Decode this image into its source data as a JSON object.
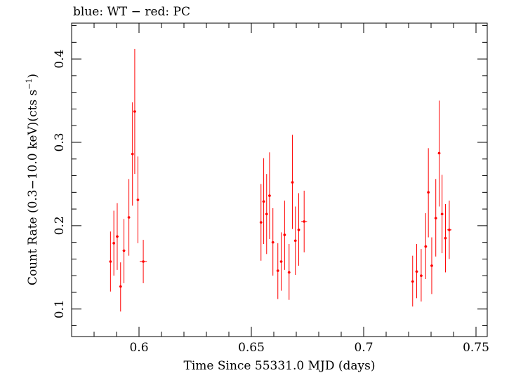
{
  "chart_data": {
    "type": "scatter",
    "title": "blue: WT − red: PC",
    "xlabel": "Time Since 55331.0 MJD (days)",
    "ylabel": "Count Rate (0.3−10.0 keV)(cts s",
    "ylabel_sup": "−1",
    "ylabel_end": ")",
    "xlim": [
      0.57,
      0.755
    ],
    "ylim": [
      0.067,
      0.443
    ],
    "x_ticks": [
      0.6,
      0.65,
      0.7,
      0.75
    ],
    "x_tick_labels": [
      "0.6",
      "0.65",
      "0.7",
      "0.75"
    ],
    "y_ticks": [
      0.1,
      0.2,
      0.3,
      0.4
    ],
    "y_tick_labels": [
      "0.1",
      "0.2",
      "0.3",
      "0.4"
    ],
    "grid": false,
    "series": [
      {
        "color": "#ff0000",
        "points": [
          {
            "x": 0.5873,
            "y": 0.157,
            "lo": 0.121,
            "hi": 0.193,
            "xerr": 0.0006
          },
          {
            "x": 0.5888,
            "y": 0.179,
            "lo": 0.14,
            "hi": 0.218,
            "xerr": 0.0006
          },
          {
            "x": 0.5903,
            "y": 0.187,
            "lo": 0.147,
            "hi": 0.227,
            "xerr": 0.0006
          },
          {
            "x": 0.5918,
            "y": 0.127,
            "lo": 0.097,
            "hi": 0.156,
            "xerr": 0.0006
          },
          {
            "x": 0.5933,
            "y": 0.17,
            "lo": 0.131,
            "hi": 0.208,
            "xerr": 0.0006
          },
          {
            "x": 0.5955,
            "y": 0.21,
            "lo": 0.164,
            "hi": 0.256,
            "xerr": 0.0006
          },
          {
            "x": 0.5971,
            "y": 0.286,
            "lo": 0.224,
            "hi": 0.348,
            "xerr": 0.0006
          },
          {
            "x": 0.5981,
            "y": 0.337,
            "lo": 0.262,
            "hi": 0.412,
            "xerr": 0.0006
          },
          {
            "x": 0.5995,
            "y": 0.231,
            "lo": 0.179,
            "hi": 0.283,
            "xerr": 0.0006
          },
          {
            "x": 0.6019,
            "y": 0.157,
            "lo": 0.131,
            "hi": 0.183,
            "xerr": 0.0016
          },
          {
            "x": 0.6543,
            "y": 0.204,
            "lo": 0.158,
            "hi": 0.25,
            "xerr": 0.0006
          },
          {
            "x": 0.6555,
            "y": 0.229,
            "lo": 0.178,
            "hi": 0.281,
            "xerr": 0.0006
          },
          {
            "x": 0.6568,
            "y": 0.214,
            "lo": 0.166,
            "hi": 0.262,
            "xerr": 0.0006
          },
          {
            "x": 0.6581,
            "y": 0.236,
            "lo": 0.184,
            "hi": 0.288,
            "xerr": 0.0006
          },
          {
            "x": 0.6596,
            "y": 0.18,
            "lo": 0.14,
            "hi": 0.221,
            "xerr": 0.0006
          },
          {
            "x": 0.6618,
            "y": 0.146,
            "lo": 0.112,
            "hi": 0.179,
            "xerr": 0.0006
          },
          {
            "x": 0.6633,
            "y": 0.157,
            "lo": 0.122,
            "hi": 0.192,
            "xerr": 0.0006
          },
          {
            "x": 0.6648,
            "y": 0.189,
            "lo": 0.147,
            "hi": 0.23,
            "xerr": 0.0006
          },
          {
            "x": 0.6668,
            "y": 0.144,
            "lo": 0.111,
            "hi": 0.178,
            "xerr": 0.0006
          },
          {
            "x": 0.6683,
            "y": 0.252,
            "lo": 0.196,
            "hi": 0.309,
            "xerr": 0.0006
          },
          {
            "x": 0.6696,
            "y": 0.182,
            "lo": 0.141,
            "hi": 0.223,
            "xerr": 0.0006
          },
          {
            "x": 0.6711,
            "y": 0.195,
            "lo": 0.152,
            "hi": 0.239,
            "xerr": 0.0006
          },
          {
            "x": 0.6735,
            "y": 0.205,
            "lo": 0.168,
            "hi": 0.242,
            "xerr": 0.0013
          },
          {
            "x": 0.7218,
            "y": 0.133,
            "lo": 0.103,
            "hi": 0.164,
            "xerr": 0.0006
          },
          {
            "x": 0.7236,
            "y": 0.145,
            "lo": 0.113,
            "hi": 0.178,
            "xerr": 0.0006
          },
          {
            "x": 0.7256,
            "y": 0.14,
            "lo": 0.109,
            "hi": 0.172,
            "xerr": 0.0006
          },
          {
            "x": 0.7276,
            "y": 0.175,
            "lo": 0.136,
            "hi": 0.215,
            "xerr": 0.0006
          },
          {
            "x": 0.7288,
            "y": 0.24,
            "lo": 0.186,
            "hi": 0.293,
            "xerr": 0.0006
          },
          {
            "x": 0.7303,
            "y": 0.152,
            "lo": 0.118,
            "hi": 0.186,
            "xerr": 0.0006
          },
          {
            "x": 0.7321,
            "y": 0.209,
            "lo": 0.163,
            "hi": 0.256,
            "xerr": 0.0006
          },
          {
            "x": 0.7336,
            "y": 0.287,
            "lo": 0.223,
            "hi": 0.35,
            "xerr": 0.0006
          },
          {
            "x": 0.7349,
            "y": 0.214,
            "lo": 0.167,
            "hi": 0.261,
            "xerr": 0.0006
          },
          {
            "x": 0.7364,
            "y": 0.185,
            "lo": 0.144,
            "hi": 0.226,
            "xerr": 0.0006
          },
          {
            "x": 0.7381,
            "y": 0.195,
            "lo": 0.16,
            "hi": 0.23,
            "xerr": 0.001
          }
        ]
      }
    ]
  }
}
